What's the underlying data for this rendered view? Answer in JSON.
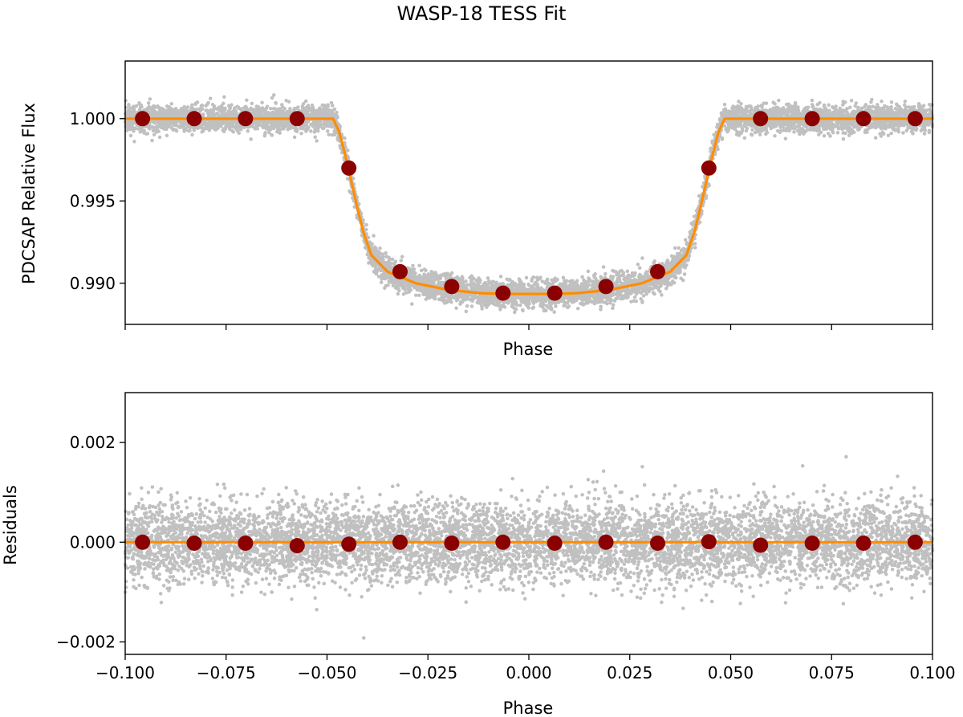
{
  "title": "WASP-18 TESS Fit",
  "colors": {
    "scatter": "#c0c0c0",
    "model": "#ff8c00",
    "binned": "#8b0000",
    "axes": "#000000"
  },
  "chart_data": [
    {
      "type": "scatter",
      "name": "flux-panel",
      "xlabel": "Phase",
      "ylabel": "PDCSAP Relative Flux",
      "xlim": [
        -0.1,
        0.1
      ],
      "ylim": [
        0.9875,
        1.0035
      ],
      "xticks": [
        -0.1,
        -0.075,
        -0.05,
        -0.025,
        0.0,
        0.025,
        0.05,
        0.075,
        0.1
      ],
      "xtick_labels_visible": false,
      "yticks": [
        0.99,
        0.995,
        1.0
      ],
      "ytick_labels": [
        "0.990",
        "0.995",
        "1.000"
      ],
      "scatter_noise_sigma": 0.0004,
      "model": {
        "name": "transit model",
        "x": [
          -0.1,
          -0.0485,
          -0.047,
          -0.0455,
          -0.044,
          -0.0425,
          -0.041,
          -0.039,
          -0.035,
          -0.028,
          -0.02,
          -0.012,
          -0.006,
          0.0,
          0.006,
          0.012,
          0.02,
          0.028,
          0.035,
          0.039,
          0.041,
          0.0425,
          0.044,
          0.0455,
          0.047,
          0.0485,
          0.1
        ],
        "y": [
          1.0,
          1.0,
          0.9992,
          0.9978,
          0.9962,
          0.9946,
          0.9931,
          0.9917,
          0.9907,
          0.99,
          0.9896,
          0.9894,
          0.98935,
          0.98935,
          0.98935,
          0.9894,
          0.9896,
          0.99,
          0.9907,
          0.9917,
          0.9931,
          0.9946,
          0.9962,
          0.9978,
          0.9992,
          1.0,
          1.0
        ]
      },
      "binned": {
        "name": "binned data",
        "x": [
          -0.0957,
          -0.0829,
          -0.0702,
          -0.0574,
          -0.0446,
          -0.0319,
          -0.0191,
          -0.0064,
          0.0064,
          0.0191,
          0.0319,
          0.0446,
          0.0574,
          0.0702,
          0.0829,
          0.0957
        ],
        "y": [
          1.0,
          1.0,
          1.0,
          1.0,
          0.997,
          0.9907,
          0.9898,
          0.9894,
          0.9894,
          0.9898,
          0.9907,
          0.997,
          1.0,
          1.0,
          1.0,
          1.0
        ]
      }
    },
    {
      "type": "scatter",
      "name": "residuals-panel",
      "xlabel": "Phase",
      "ylabel": "Residuals",
      "xlim": [
        -0.1,
        0.1
      ],
      "ylim": [
        -0.00225,
        0.003
      ],
      "xticks": [
        -0.1,
        -0.075,
        -0.05,
        -0.025,
        0.0,
        0.025,
        0.05,
        0.075,
        0.1
      ],
      "xtick_labels": [
        "−0.100",
        "−0.075",
        "−0.050",
        "−0.025",
        "0.000",
        "0.025",
        "0.050",
        "0.075",
        "0.100"
      ],
      "yticks": [
        -0.002,
        0.0,
        0.002
      ],
      "ytick_labels": [
        "−0.002",
        "0.000",
        "0.002"
      ],
      "scatter_noise_sigma": 0.0004,
      "model": {
        "name": "zero line",
        "x": [
          -0.1,
          0.1
        ],
        "y": [
          0.0,
          0.0
        ]
      },
      "binned": {
        "name": "binned residuals",
        "x": [
          -0.0957,
          -0.0829,
          -0.0702,
          -0.0574,
          -0.0446,
          -0.0319,
          -0.0191,
          -0.0064,
          0.0064,
          0.0191,
          0.0319,
          0.0446,
          0.0574,
          0.0702,
          0.0829,
          0.0957
        ],
        "y": [
          0.0,
          -2e-05,
          -2e-05,
          -7e-05,
          -4e-05,
          0.0,
          -2e-05,
          0.0,
          -2e-05,
          0.0,
          -2e-05,
          1e-05,
          -6e-05,
          -2e-05,
          -2e-05,
          0.0
        ]
      }
    }
  ]
}
